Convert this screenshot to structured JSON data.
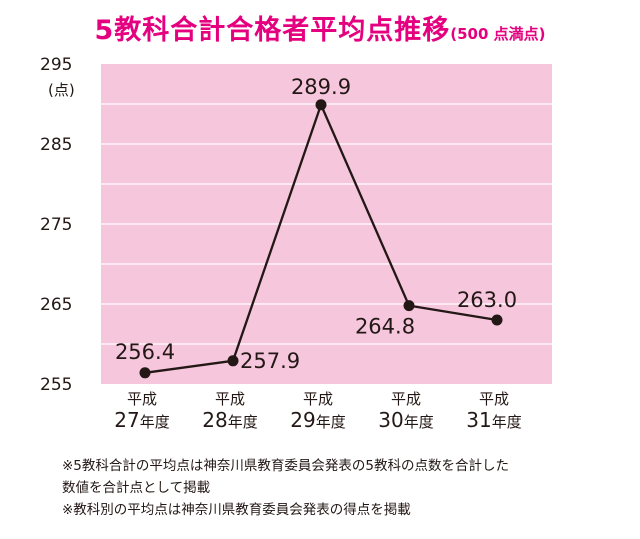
{
  "chart_data": {
    "type": "line",
    "title": "5教科合計合格者平均点推移",
    "subtitle": "(500 点満点)",
    "ylabel": "(点)",
    "categories": [
      [
        "平成",
        "27年度"
      ],
      [
        "平成",
        "28年度"
      ],
      [
        "平成",
        "29年度"
      ],
      [
        "平成",
        "30年度"
      ],
      [
        "平成",
        "31年度"
      ]
    ],
    "series": [
      {
        "values": [
          256.4,
          257.9,
          289.9,
          264.8,
          263.0
        ]
      }
    ],
    "data_labels": [
      "256.4",
      "257.9",
      "289.9",
      "264.8",
      "263.0"
    ],
    "yticks": [
      "255",
      "265",
      "275",
      "285",
      "295"
    ],
    "ylim": [
      255,
      295
    ],
    "grid": true,
    "colors": {
      "title": "#e4007f",
      "plot_bg": "#f5c6dc",
      "grid": "#ffffff",
      "line": "#231815",
      "text": "#231815"
    }
  },
  "notes": [
    "※5教科合計の平均点は神奈川県教育委員会発表の5教科の点数を合計した",
    "数値を合計点として掲載",
    "※教科別の平均点は神奈川県教育委員会発表の得点を掲載"
  ]
}
